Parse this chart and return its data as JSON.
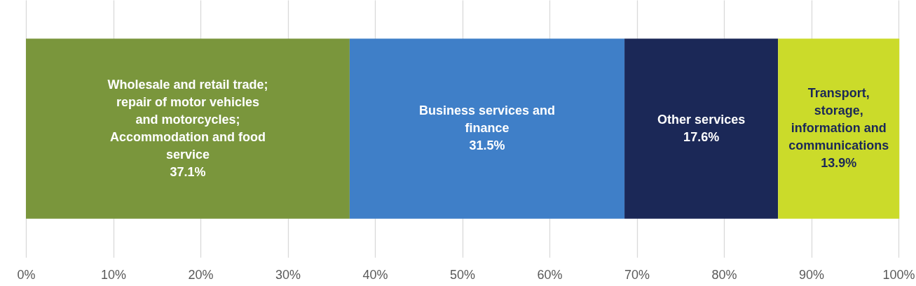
{
  "chart_data": {
    "type": "bar",
    "orientation": "horizontal",
    "stacked": true,
    "categories": [
      null
    ],
    "series": [
      {
        "name": "Wholesale and retail trade; repair of motor vehicles and motorcycles; Accommodation and food service",
        "color": "#7a963c",
        "values": [
          37.1
        ],
        "value_labels": [
          "37.1%"
        ]
      },
      {
        "name": "Business services and finance",
        "color": "#3f7fc8",
        "values": [
          31.5
        ],
        "value_labels": [
          "31.5%"
        ]
      },
      {
        "name": "Other services",
        "color": "#1b2857",
        "values": [
          17.6
        ],
        "value_labels": [
          "17.6%"
        ]
      },
      {
        "name": "Transport, storage, information and communications",
        "color": "#cbdb2a",
        "values": [
          13.9
        ],
        "value_labels": [
          "13.9%"
        ]
      }
    ],
    "xlim": [
      0,
      100
    ],
    "xticks": [
      {
        "value": 0,
        "label": "0%"
      },
      {
        "value": 10,
        "label": "10%"
      },
      {
        "value": 20,
        "label": "20%"
      },
      {
        "value": 30,
        "label": "30%"
      },
      {
        "value": 40,
        "label": "40%"
      },
      {
        "value": 50,
        "label": "50%"
      },
      {
        "value": 60,
        "label": "60%"
      },
      {
        "value": 70,
        "label": "70%"
      },
      {
        "value": 80,
        "label": "80%"
      },
      {
        "value": 90,
        "label": "90%"
      },
      {
        "value": 100,
        "label": "100%"
      }
    ],
    "grid": "x",
    "legend": false
  }
}
